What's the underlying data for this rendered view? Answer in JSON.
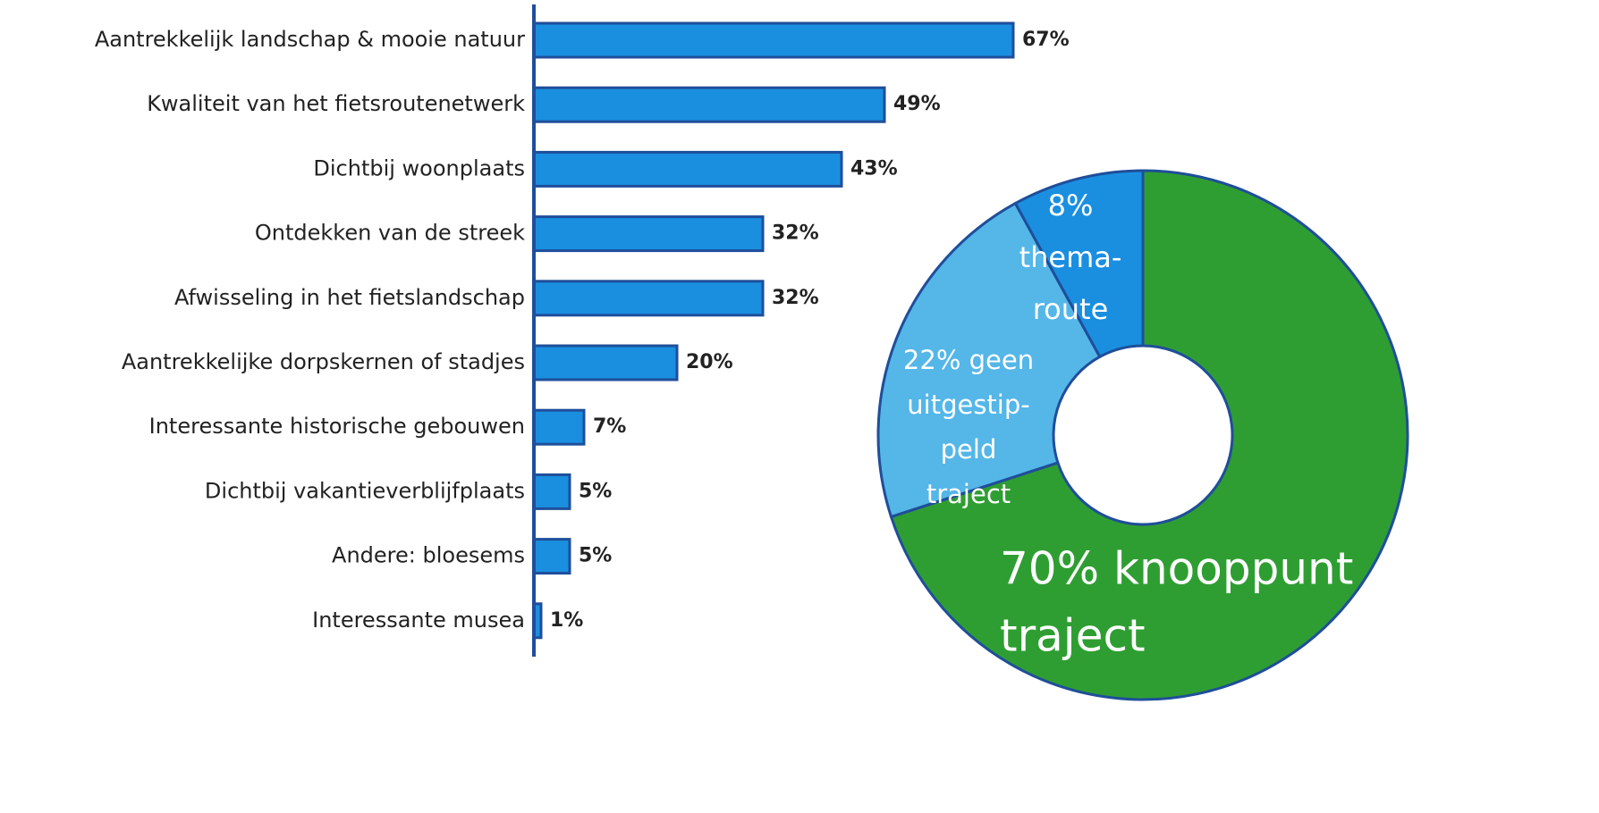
{
  "chart_data": [
    {
      "type": "bar",
      "orientation": "horizontal",
      "categories": [
        "Aantrekkelijk landschap & mooie natuur",
        "Kwaliteit van het fietsroutenetwerk",
        "Dichtbij woonplaats",
        "Ontdekken van de streek",
        "Afwisseling in het fietslandschap",
        "Aantrekkelijke dorpskernen of stadjes",
        "Interessante historische gebouwen",
        "Dichtbij vakantieverblijfplaats",
        "Andere: bloesems",
        "Interessante musea"
      ],
      "values": [
        67,
        49,
        43,
        32,
        32,
        20,
        7,
        5,
        5,
        1
      ],
      "value_labels": [
        "67%",
        "49%",
        "43%",
        "32%",
        "32%",
        "20%",
        "7%",
        "5%",
        "5%",
        "1%"
      ],
      "color": "#1a8fe0",
      "xlim": [
        0,
        100
      ]
    },
    {
      "type": "donut",
      "values": [
        70,
        22,
        8
      ],
      "value_labels": [
        [
          "70% knooppunt",
          "traject"
        ],
        [
          "22% geen",
          "uitgestip-",
          "peld",
          "traject"
        ],
        [
          "8%",
          "thema-",
          "route"
        ]
      ],
      "colors": [
        "#2f9e32",
        "#55b6e8",
        "#1a8fe0"
      ]
    }
  ]
}
